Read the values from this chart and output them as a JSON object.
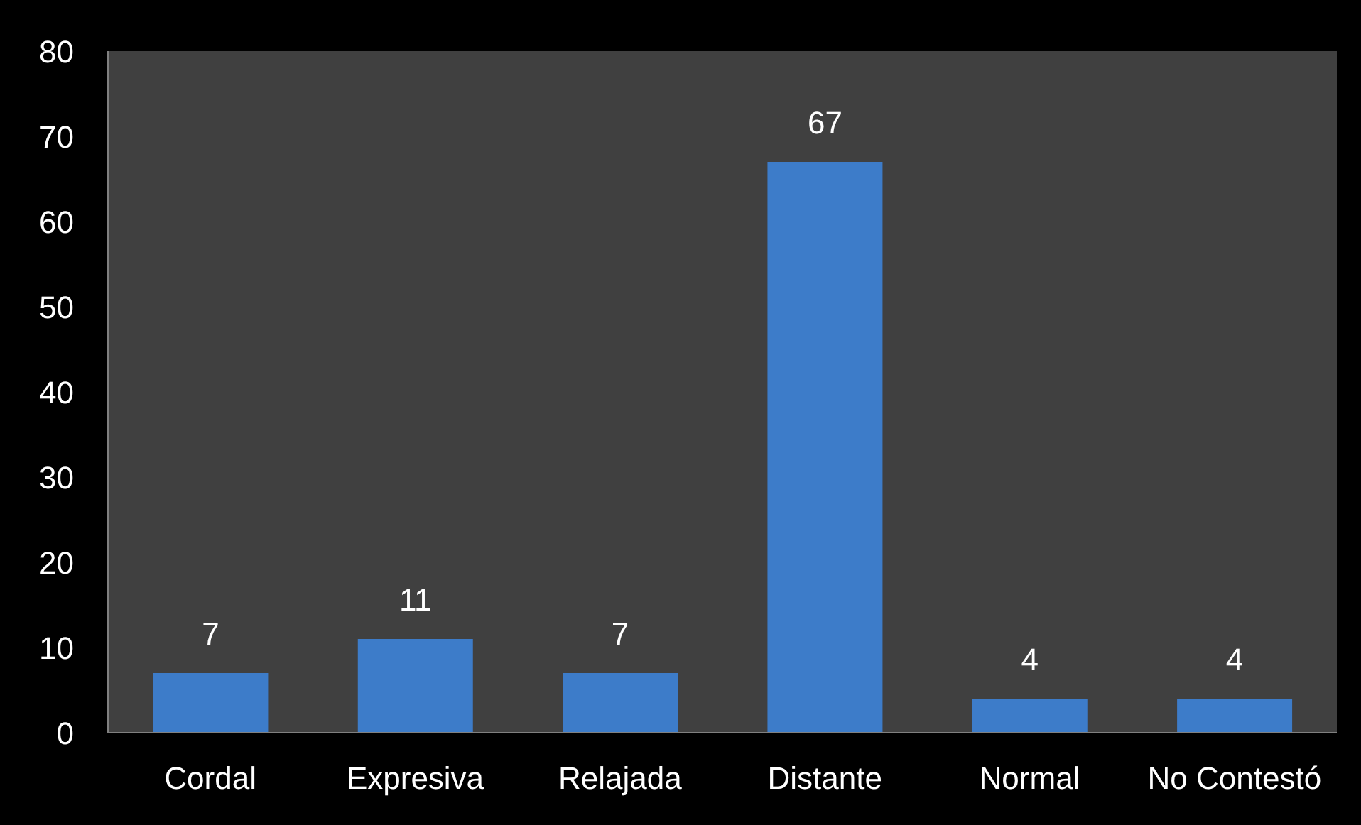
{
  "chart_data": {
    "type": "bar",
    "categories": [
      "Cordal",
      "Expresiva",
      "Relajada",
      "Distante",
      "Normal",
      "No Contestó"
    ],
    "values": [
      7,
      11,
      7,
      67,
      4,
      4
    ],
    "color": "#3d7cc9",
    "ylim": [
      0,
      80
    ],
    "yticks": [
      0,
      10,
      20,
      30,
      40,
      50,
      60,
      70,
      80
    ],
    "data_labels": true
  }
}
